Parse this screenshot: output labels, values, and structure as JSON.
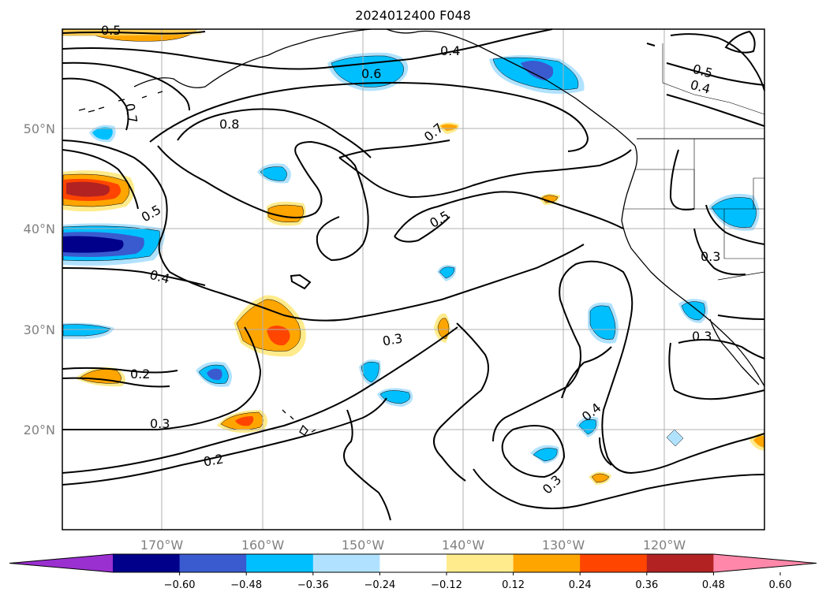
{
  "map": {
    "title": "2024012400 F048",
    "lon_ticks": [
      "170°W",
      "160°W",
      "150°W",
      "140°W",
      "130°W",
      "120°W"
    ],
    "lat_ticks": [
      "50°N",
      "40°N",
      "30°N",
      "20°N"
    ],
    "contour_labels": [
      "0.5",
      "0.6",
      "0.4",
      "0.7",
      "0.8",
      "0.7",
      "0.5",
      "0.4",
      "0.5",
      "0.4",
      "0.3",
      "0.3",
      "0.3",
      "0.4",
      "0.3",
      "0.2",
      "0.3",
      "0.2",
      "0.3"
    ],
    "colorbar": {
      "ticks": [
        "−0.60",
        "−0.48",
        "−0.36",
        "−0.24",
        "−0.12",
        "0.12",
        "0.24",
        "0.36",
        "0.48",
        "0.60"
      ],
      "colors": [
        "#9b30d0",
        "#00008b",
        "#3a5bd0",
        "#00bfff",
        "#b0e2ff",
        "#ffffff",
        "#ffeb8c",
        "#ffa500",
        "#ff4500",
        "#b22222",
        "#ff88aa"
      ]
    }
  }
}
